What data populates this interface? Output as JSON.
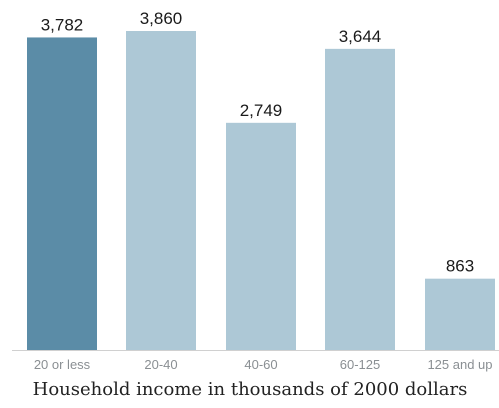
{
  "chart_data": {
    "type": "bar",
    "categories": [
      "20 or less",
      "20-40",
      "40-60",
      "60-125",
      "125 and up"
    ],
    "values": [
      3782,
      3860,
      2749,
      3644,
      863
    ],
    "value_labels": [
      "3,782",
      "3,860",
      "2,749",
      "3,644",
      "863"
    ],
    "xlabel": "Household income in thousands of 2000 dollars",
    "ylim": [
      0,
      4000
    ],
    "grid": false,
    "legend": "none",
    "highlight_index": 0
  },
  "colors": {
    "highlight": "#5b8ca7",
    "bar": "#adc8d6",
    "axis": "#d0d0d0"
  }
}
